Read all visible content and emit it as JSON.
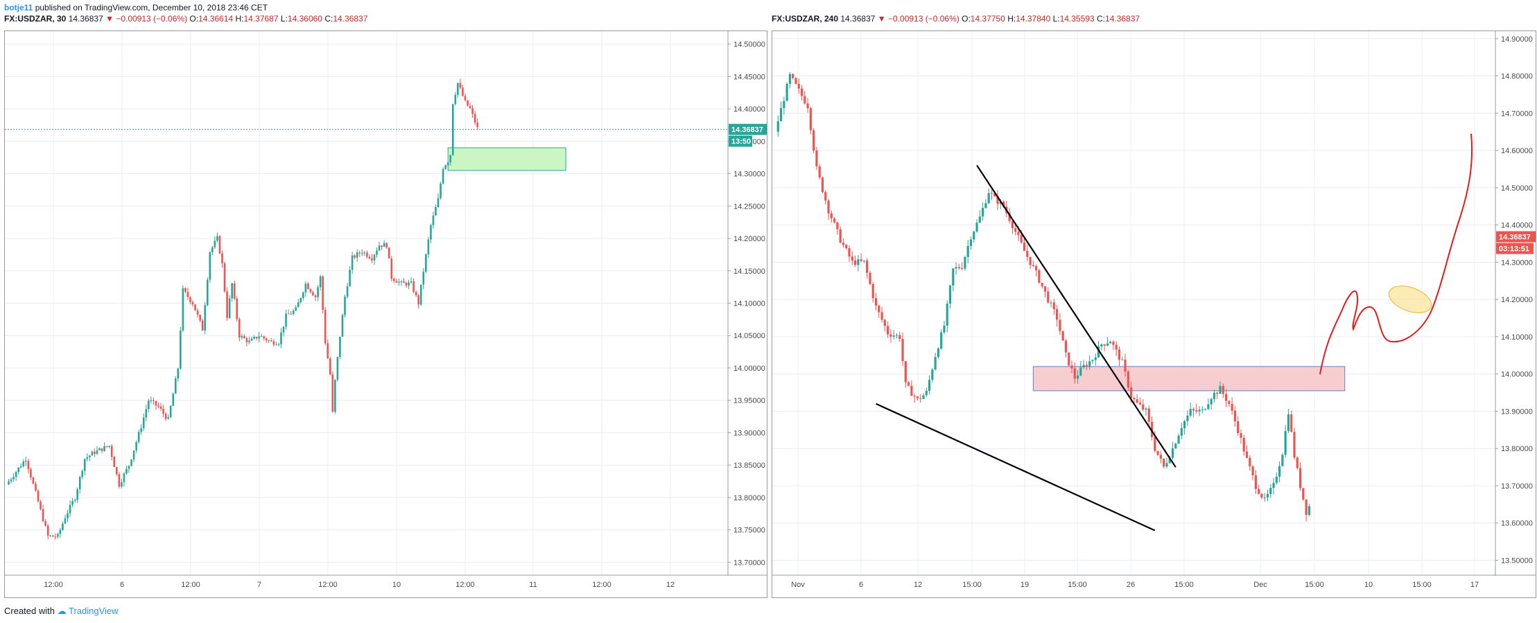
{
  "header": {
    "author": "botje11",
    "published_text": "published on TradingView.com, December 10, 2018 23:46 CET"
  },
  "colors": {
    "up": "#26a69a",
    "down": "#ef5350",
    "grid": "#e9ecf2",
    "axis_text": "#4a4a4a"
  },
  "panels": [
    {
      "symbol": "FX:USDZAR, 30",
      "last": "14.36837",
      "change": "−0.00913 (−0.06%)",
      "o": "14.36614",
      "h": "14.37687",
      "l": "14.36060",
      "c": "14.36837",
      "price_tag": "14.36837",
      "countdown": "13:50",
      "chart_data": {
        "type": "candlestick",
        "ylim": [
          13.68,
          14.52
        ],
        "y_ticks": [
          "14.50000",
          "14.45000",
          "14.40000",
          "14.35000",
          "14.30000",
          "14.25000",
          "14.20000",
          "14.15000",
          "14.10000",
          "14.05000",
          "14.00000",
          "13.95000",
          "13.90000",
          "13.85000",
          "13.80000",
          "13.75000",
          "13.70000"
        ],
        "x_ticks": [
          "12:00",
          "6",
          "12:00",
          "7",
          "12:00",
          "10",
          "12:00",
          "11",
          "12:00",
          "12"
        ],
        "candles": 192,
        "path": [
          [
            0,
            13.82
          ],
          [
            8,
            13.86
          ],
          [
            14,
            13.78
          ],
          [
            17,
            13.74
          ],
          [
            21,
            13.74
          ],
          [
            24,
            13.77
          ],
          [
            28,
            13.8
          ],
          [
            32,
            13.86
          ],
          [
            36,
            13.87
          ],
          [
            42,
            13.88
          ],
          [
            46,
            13.82
          ],
          [
            50,
            13.85
          ],
          [
            55,
            13.91
          ],
          [
            58,
            13.95
          ],
          [
            62,
            13.94
          ],
          [
            66,
            13.92
          ],
          [
            70,
            14.0
          ],
          [
            72,
            14.12
          ],
          [
            76,
            14.1
          ],
          [
            80,
            14.06
          ],
          [
            83,
            14.18
          ],
          [
            86,
            14.2
          ],
          [
            88,
            14.16
          ],
          [
            90,
            14.08
          ],
          [
            92,
            14.13
          ],
          [
            95,
            14.05
          ],
          [
            99,
            14.04
          ],
          [
            103,
            14.05
          ],
          [
            108,
            14.04
          ],
          [
            111,
            14.04
          ],
          [
            114,
            14.08
          ],
          [
            118,
            14.09
          ],
          [
            122,
            14.13
          ],
          [
            126,
            14.11
          ],
          [
            128,
            14.14
          ],
          [
            130,
            14.04
          ],
          [
            132,
            13.99
          ],
          [
            133,
            13.93
          ],
          [
            134,
            13.98
          ],
          [
            136,
            14.05
          ],
          [
            138,
            14.11
          ],
          [
            141,
            14.17
          ],
          [
            145,
            14.18
          ],
          [
            149,
            14.17
          ],
          [
            152,
            14.19
          ],
          [
            155,
            14.19
          ],
          [
            157,
            14.14
          ],
          [
            161,
            14.13
          ],
          [
            165,
            14.13
          ],
          [
            168,
            14.1
          ],
          [
            170,
            14.15
          ],
          [
            173,
            14.22
          ],
          [
            176,
            14.26
          ],
          [
            178,
            14.31
          ],
          [
            180,
            14.32
          ],
          [
            181,
            14.33
          ],
          [
            182,
            14.41
          ],
          [
            184,
            14.44
          ],
          [
            185,
            14.43
          ],
          [
            187,
            14.41
          ],
          [
            189,
            14.4
          ],
          [
            191,
            14.38
          ],
          [
            192,
            14.37
          ]
        ],
        "zone": {
          "x0": 180,
          "x1": 228,
          "y_top": 14.34,
          "y_bottom": 14.305,
          "color": "#ccf5c4"
        },
        "current_price_line": 14.36837
      }
    },
    {
      "symbol": "FX:USDZAR, 240",
      "last": "14.36837",
      "change": "−0.00913 (−0.06%)",
      "o": "14.37750",
      "h": "14.37840",
      "l": "14.35593",
      "c": "14.36837",
      "price_tag": "14.36837",
      "countdown": "03:13:51",
      "chart_data": {
        "type": "candlestick",
        "ylim": [
          13.46,
          14.92
        ],
        "y_ticks": [
          "14.90000",
          "14.80000",
          "14.70000",
          "14.60000",
          "14.50000",
          "14.40000",
          "14.30000",
          "14.20000",
          "14.10000",
          "14.00000",
          "13.90000",
          "13.80000",
          "13.70000",
          "13.60000",
          "13.50000"
        ],
        "x_ticks": [
          "Nov",
          "6",
          "12",
          "15:00",
          "19",
          "15:00",
          "26",
          "15:00",
          "Dec",
          "15:00",
          "10",
          "15:00",
          "17"
        ],
        "candles": 180,
        "path": [
          [
            0,
            14.65
          ],
          [
            3,
            14.74
          ],
          [
            5,
            14.8
          ],
          [
            8,
            14.76
          ],
          [
            11,
            14.72
          ],
          [
            14,
            14.55
          ],
          [
            18,
            14.44
          ],
          [
            22,
            14.36
          ],
          [
            26,
            14.3
          ],
          [
            30,
            14.3
          ],
          [
            34,
            14.18
          ],
          [
            38,
            14.11
          ],
          [
            42,
            14.1
          ],
          [
            44,
            13.97
          ],
          [
            48,
            13.93
          ],
          [
            51,
            13.95
          ],
          [
            54,
            14.05
          ],
          [
            57,
            14.13
          ],
          [
            60,
            14.28
          ],
          [
            63,
            14.29
          ],
          [
            66,
            14.37
          ],
          [
            69,
            14.42
          ],
          [
            72,
            14.49
          ],
          [
            74,
            14.47
          ],
          [
            77,
            14.45
          ],
          [
            80,
            14.4
          ],
          [
            84,
            14.33
          ],
          [
            88,
            14.27
          ],
          [
            92,
            14.2
          ],
          [
            95,
            14.15
          ],
          [
            98,
            14.05
          ],
          [
            101,
            13.99
          ],
          [
            104,
            14.02
          ],
          [
            107,
            14.04
          ],
          [
            110,
            14.08
          ],
          [
            113,
            14.09
          ],
          [
            115,
            14.06
          ],
          [
            117,
            14.03
          ],
          [
            120,
            13.94
          ],
          [
            122,
            13.92
          ],
          [
            125,
            13.9
          ],
          [
            128,
            13.8
          ],
          [
            131,
            13.75
          ],
          [
            134,
            13.8
          ],
          [
            137,
            13.86
          ],
          [
            140,
            13.9
          ],
          [
            144,
            13.9
          ],
          [
            147,
            13.94
          ],
          [
            150,
            13.96
          ],
          [
            153,
            13.92
          ],
          [
            156,
            13.85
          ],
          [
            159,
            13.77
          ],
          [
            162,
            13.7
          ],
          [
            165,
            13.66
          ],
          [
            168,
            13.7
          ],
          [
            171,
            13.79
          ],
          [
            173,
            13.9
          ],
          [
            175,
            13.78
          ],
          [
            177,
            13.7
          ],
          [
            179,
            13.63
          ],
          [
            181,
            13.66
          ],
          [
            184,
            13.58
          ],
          [
            186,
            13.74
          ],
          [
            188,
            13.8
          ],
          [
            190,
            13.85
          ],
          [
            192,
            13.83
          ],
          [
            194,
            13.82
          ],
          [
            196,
            13.92
          ],
          [
            198,
            14.0
          ],
          [
            201,
            14.09
          ],
          [
            203,
            14.08
          ],
          [
            206,
            14.06
          ],
          [
            209,
            14.13
          ],
          [
            211,
            14.2
          ],
          [
            213,
            14.22
          ],
          [
            215,
            14.37
          ],
          [
            216,
            14.4
          ],
          [
            218,
            14.37
          ]
        ],
        "zone": {
          "x0": 87,
          "x1": 192,
          "y_top": 14.02,
          "y_bottom": 13.955,
          "color": "#f8cdd0"
        },
        "trendlines": [
          [
            [
              68,
              14.56
            ],
            [
              135,
              13.75
            ]
          ],
          [
            [
              34,
              13.92
            ],
            [
              128,
              13.58
            ]
          ]
        ],
        "current_price_line": 14.36837
      }
    }
  ],
  "footer": {
    "created_text": "Created with",
    "brand": "TradingView"
  }
}
